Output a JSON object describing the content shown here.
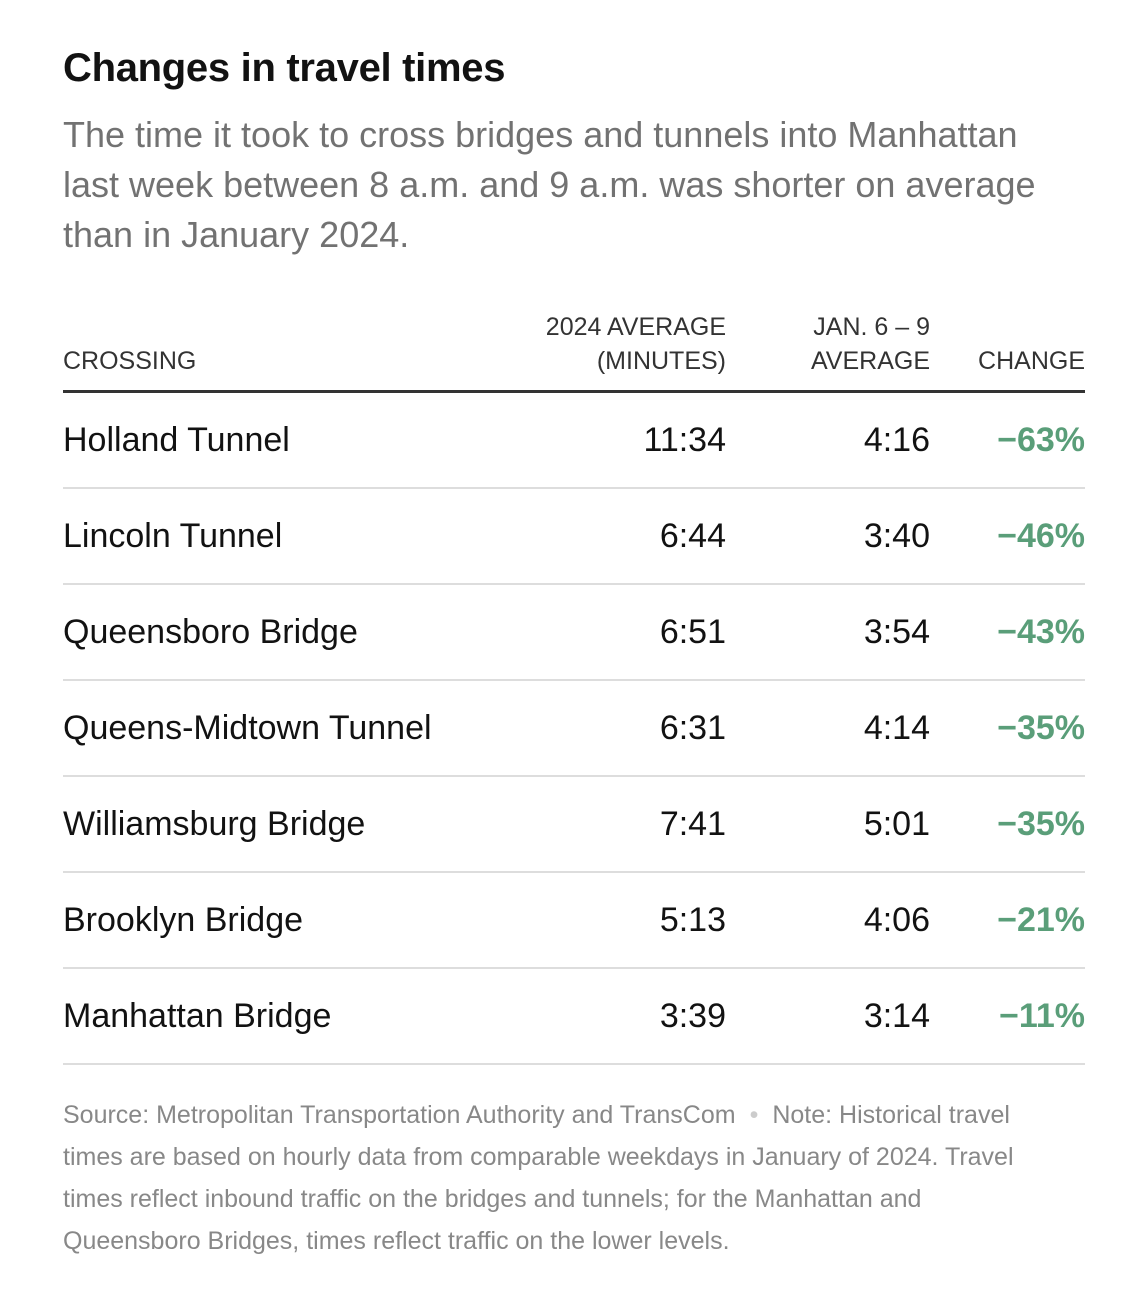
{
  "header": {
    "title": "Changes in travel times",
    "subtitle": "The time it took to cross bridges and tunnels into Manhattan last week between 8 a.m. and 9 a.m. was shorter on average than in January 2024."
  },
  "table": {
    "columns": [
      [
        "CROSSING"
      ],
      [
        "2024 AVERAGE",
        "(MINUTES)"
      ],
      [
        "JAN. 6 – 9",
        "AVERAGE"
      ],
      [
        "CHANGE"
      ]
    ],
    "rows": [
      [
        "Holland Tunnel",
        "11:34",
        "4:16",
        "−63%"
      ],
      [
        "Lincoln Tunnel",
        "6:44",
        "3:40",
        "−46%"
      ],
      [
        "Queensboro Bridge",
        "6:51",
        "3:54",
        "−43%"
      ],
      [
        "Queens-Midtown Tunnel",
        "6:31",
        "4:14",
        "−35%"
      ],
      [
        "Williamsburg Bridge",
        "7:41",
        "5:01",
        "−35%"
      ],
      [
        "Brooklyn Bridge",
        "5:13",
        "4:06",
        "−21%"
      ],
      [
        "Manhattan Bridge",
        "3:39",
        "3:14",
        "−11%"
      ]
    ]
  },
  "footer": {
    "source": "Source: Metropolitan Transportation Authority and TransCom",
    "note": "Note: Historical travel times are based on hourly data from comparable weekdays in January of 2024. Travel times reflect inbound traffic on the bridges and tunnels; for the Manhattan and Queensboro Bridges, times reflect traffic on the lower levels."
  }
}
